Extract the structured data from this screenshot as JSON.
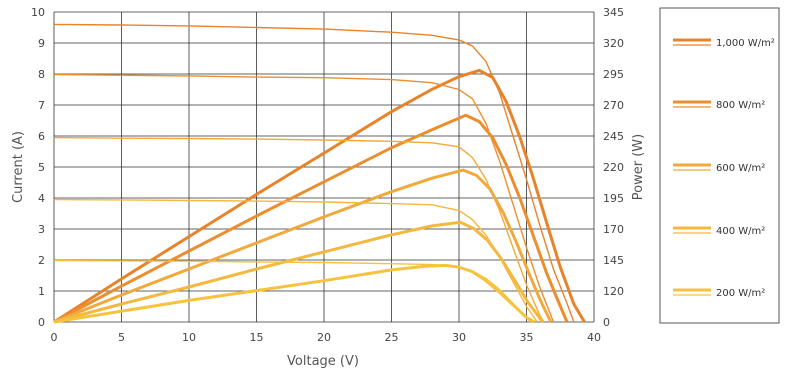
{
  "chart_data": {
    "type": "line",
    "xlabel": "Voltage (V)",
    "ylabel": "Current (A)",
    "y2label": "Power (W)",
    "xlim": [
      0,
      40
    ],
    "ylim": [
      0,
      10
    ],
    "y2lim": [
      0,
      345
    ],
    "xticks": [
      0,
      5,
      10,
      15,
      20,
      25,
      30,
      35,
      40
    ],
    "yticks": [
      0,
      1,
      2,
      3,
      4,
      5,
      6,
      7,
      8,
      9,
      10
    ],
    "y2ticks": [
      0,
      120,
      145,
      170,
      195,
      220,
      245,
      270,
      295,
      320,
      345
    ],
    "grid": true,
    "legend_position": "right",
    "series": [
      {
        "name": "1,000 W/m²",
        "color": "#E8832A",
        "iv": [
          [
            0,
            9.6
          ],
          [
            5,
            9.58
          ],
          [
            10,
            9.55
          ],
          [
            15,
            9.5
          ],
          [
            20,
            9.45
          ],
          [
            25,
            9.35
          ],
          [
            28,
            9.25
          ],
          [
            30,
            9.1
          ],
          [
            31,
            8.9
          ],
          [
            32,
            8.4
          ],
          [
            33,
            7.4
          ],
          [
            34,
            6.0
          ],
          [
            35,
            4.6
          ],
          [
            36,
            3.1
          ],
          [
            37,
            1.7
          ],
          [
            38,
            0.6
          ],
          [
            38.5,
            0
          ]
        ],
        "pv": [
          [
            0,
            0
          ],
          [
            5,
            48
          ],
          [
            10,
            95
          ],
          [
            15,
            142
          ],
          [
            20,
            188
          ],
          [
            25,
            234
          ],
          [
            28,
            259
          ],
          [
            30,
            273
          ],
          [
            31.5,
            280
          ],
          [
            32.5,
            272
          ],
          [
            33.5,
            245
          ],
          [
            34.5,
            206
          ],
          [
            35.5,
            160
          ],
          [
            36.5,
            110
          ],
          [
            37.5,
            61
          ],
          [
            38.5,
            20
          ],
          [
            39.3,
            0
          ]
        ]
      },
      {
        "name": "800 W/m²",
        "color": "#EC8E2E",
        "iv": [
          [
            0,
            7.98
          ],
          [
            5,
            7.96
          ],
          [
            10,
            7.94
          ],
          [
            15,
            7.9
          ],
          [
            20,
            7.88
          ],
          [
            25,
            7.82
          ],
          [
            28,
            7.72
          ],
          [
            30,
            7.5
          ],
          [
            31,
            7.2
          ],
          [
            32,
            6.4
          ],
          [
            33,
            5.2
          ],
          [
            34,
            3.8
          ],
          [
            35,
            2.4
          ],
          [
            36,
            1.1
          ],
          [
            37,
            0
          ]
        ],
        "pv": [
          [
            0,
            0
          ],
          [
            5,
            40
          ],
          [
            10,
            79
          ],
          [
            15,
            118
          ],
          [
            20,
            156
          ],
          [
            25,
            194
          ],
          [
            28,
            214
          ],
          [
            30.5,
            230
          ],
          [
            31.5,
            223
          ],
          [
            32.5,
            205
          ],
          [
            33.5,
            175
          ],
          [
            34.5,
            138
          ],
          [
            35.5,
            96
          ],
          [
            36.5,
            54
          ],
          [
            37.3,
            25
          ],
          [
            38,
            0
          ]
        ]
      },
      {
        "name": "600 W/m²",
        "color": "#F2A93B",
        "iv": [
          [
            0,
            5.95
          ],
          [
            5,
            5.93
          ],
          [
            10,
            5.92
          ],
          [
            15,
            5.9
          ],
          [
            20,
            5.87
          ],
          [
            25,
            5.83
          ],
          [
            28,
            5.78
          ],
          [
            30,
            5.65
          ],
          [
            31,
            5.3
          ],
          [
            32,
            4.6
          ],
          [
            33,
            3.6
          ],
          [
            34,
            2.4
          ],
          [
            35,
            1.2
          ],
          [
            36,
            0.2
          ],
          [
            36.3,
            0
          ]
        ],
        "pv": [
          [
            0,
            0
          ],
          [
            5,
            30
          ],
          [
            10,
            59
          ],
          [
            15,
            88
          ],
          [
            20,
            117
          ],
          [
            25,
            145
          ],
          [
            28,
            160
          ],
          [
            30.3,
            169
          ],
          [
            31.3,
            163
          ],
          [
            32.3,
            148
          ],
          [
            33.3,
            121
          ],
          [
            34.3,
            87
          ],
          [
            35.3,
            50
          ],
          [
            36,
            25
          ],
          [
            36.8,
            0
          ]
        ]
      },
      {
        "name": "400 W/m²",
        "color": "#F5B83E",
        "iv": [
          [
            0,
            3.95
          ],
          [
            5,
            3.94
          ],
          [
            10,
            3.92
          ],
          [
            15,
            3.9
          ],
          [
            20,
            3.87
          ],
          [
            25,
            3.82
          ],
          [
            28,
            3.78
          ],
          [
            30,
            3.6
          ],
          [
            31,
            3.3
          ],
          [
            32,
            2.8
          ],
          [
            33,
            2.1
          ],
          [
            34,
            1.3
          ],
          [
            35,
            0.5
          ],
          [
            35.8,
            0
          ]
        ],
        "pv": [
          [
            0,
            0
          ],
          [
            5,
            20
          ],
          [
            10,
            39
          ],
          [
            15,
            59
          ],
          [
            20,
            78
          ],
          [
            25,
            97
          ],
          [
            28,
            107
          ],
          [
            30.1,
            111
          ],
          [
            31.1,
            104
          ],
          [
            32.1,
            91
          ],
          [
            33.1,
            71
          ],
          [
            34.1,
            47
          ],
          [
            35.1,
            22
          ],
          [
            36.2,
            0
          ]
        ]
      },
      {
        "name": "200 W/m²",
        "color": "#F7C33F",
        "iv": [
          [
            0,
            1.98
          ],
          [
            5,
            1.97
          ],
          [
            10,
            1.96
          ],
          [
            15,
            1.94
          ],
          [
            20,
            1.92
          ],
          [
            25,
            1.88
          ],
          [
            28,
            1.85
          ],
          [
            30,
            1.78
          ],
          [
            31,
            1.65
          ],
          [
            32,
            1.4
          ],
          [
            33,
            1.05
          ],
          [
            34,
            0.6
          ],
          [
            35,
            0.15
          ],
          [
            35.3,
            0
          ]
        ],
        "pv": [
          [
            0,
            0
          ],
          [
            5,
            12
          ],
          [
            10,
            24
          ],
          [
            15,
            35
          ],
          [
            20,
            46
          ],
          [
            25,
            58
          ],
          [
            27.5,
            62
          ],
          [
            29,
            63
          ],
          [
            30,
            61
          ],
          [
            31,
            56
          ],
          [
            32,
            46
          ],
          [
            33,
            33
          ],
          [
            34,
            19
          ],
          [
            35,
            5
          ],
          [
            35.6,
            0
          ]
        ]
      }
    ]
  }
}
